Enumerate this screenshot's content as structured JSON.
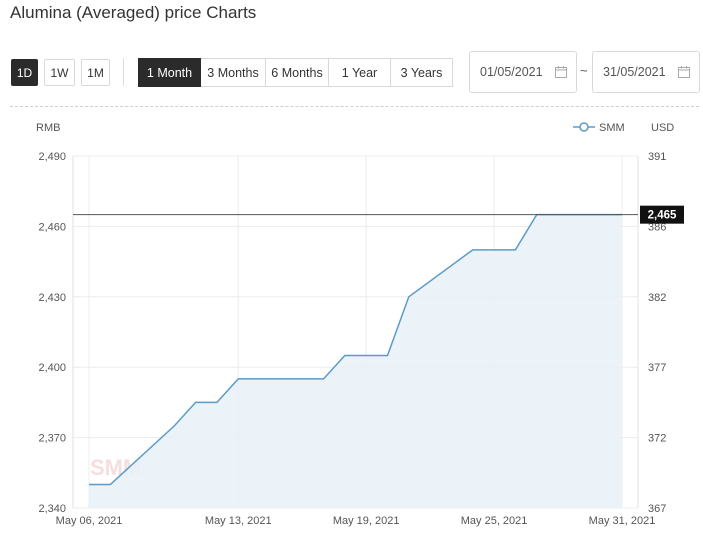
{
  "page": {
    "title": "Alumina (Averaged) price Charts"
  },
  "interval_buttons": [
    {
      "label": "1D",
      "active": true
    },
    {
      "label": "1W",
      "active": false
    },
    {
      "label": "1M",
      "active": false
    }
  ],
  "range_tabs": [
    {
      "label": "1 Month",
      "active": true
    },
    {
      "label": "3 Months",
      "active": false
    },
    {
      "label": "6 Months",
      "active": false
    },
    {
      "label": "1 Year",
      "active": false
    },
    {
      "label": "3 Years",
      "active": false
    }
  ],
  "date_range": {
    "start": "01/05/2021",
    "separator": "~",
    "end": "31/05/2021",
    "icon": "calendar-icon"
  },
  "colors": {
    "line": "#5b9bc8",
    "area": "#e9f1f7",
    "active_button": "#2b2b2b",
    "hline": "#555555"
  },
  "chart_data": {
    "type": "area",
    "left_axis_label": "RMB",
    "right_axis_label": "USD",
    "legend": "SMM",
    "legend_position": "top-right",
    "watermark": "SMM",
    "ylim": [
      2340,
      2490
    ],
    "yticks": [
      "2,490",
      "2,460",
      "2,430",
      "2,400",
      "2,370",
      "2,340"
    ],
    "y2lim": [
      367,
      391
    ],
    "y2ticks": [
      "391",
      "386",
      "382",
      "377",
      "372",
      "367"
    ],
    "xlim_days": [
      6,
      31
    ],
    "xticks": [
      {
        "day": 6,
        "label": "May 06, 2021"
      },
      {
        "day": 13,
        "label": "May 13, 2021"
      },
      {
        "day": 19,
        "label": "May 19, 2021"
      },
      {
        "day": 25,
        "label": "May 25, 2021"
      },
      {
        "day": 31,
        "label": "May 31, 2021"
      }
    ],
    "series": [
      {
        "name": "SMM",
        "x_days": [
          6,
          7,
          10,
          11,
          12,
          13,
          14,
          17,
          18,
          19,
          20,
          21,
          24,
          25,
          26,
          27,
          28,
          31
        ],
        "values": [
          2350,
          2350,
          2375,
          2385,
          2385,
          2395,
          2395,
          2395,
          2405,
          2405,
          2405,
          2430,
          2450,
          2450,
          2450,
          2465,
          2465,
          2465
        ]
      }
    ],
    "current_value_label": "2,465",
    "current_value": 2465,
    "grid": true
  }
}
